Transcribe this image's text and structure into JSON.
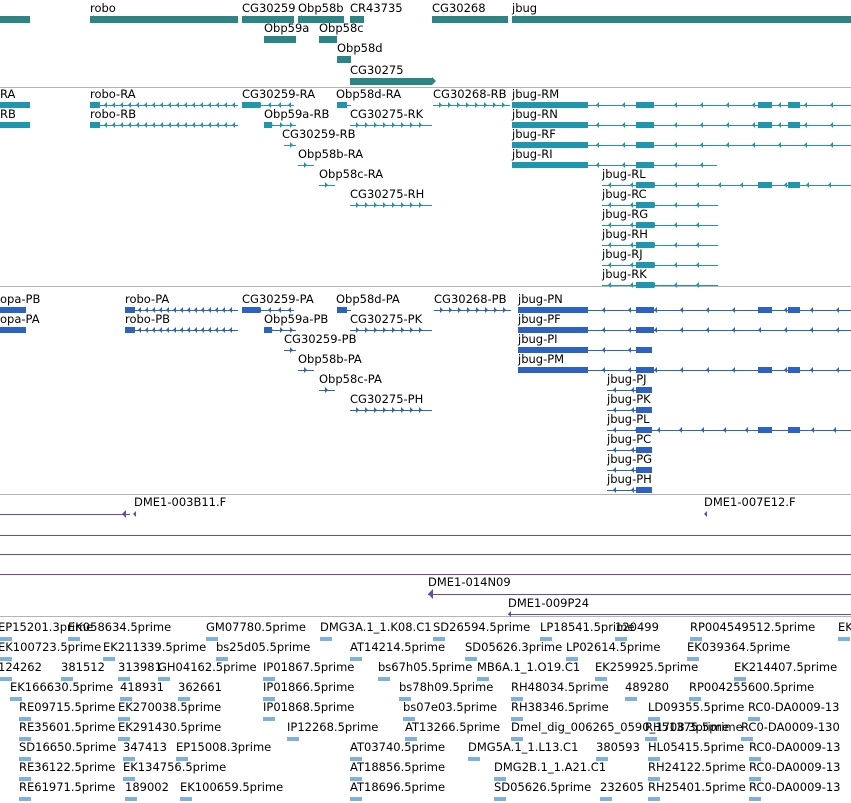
{
  "colors": {
    "gene": "#2b8585",
    "transcript": "#1e97ae",
    "protein": "#2b62c4",
    "clone": "#6a4aa8",
    "est": "#7db1de",
    "separator": "#b4b4b4"
  },
  "tracks": {
    "genes": [
      {
        "label": ""
      },
      {
        "label": "robo"
      },
      {
        "label": "CG30259"
      },
      {
        "label": "Obp58b"
      },
      {
        "label": "CR43735"
      },
      {
        "label": "CG30268"
      },
      {
        "label": "jbug"
      },
      {
        "label": "Obp59a"
      },
      {
        "label": "Obp58c"
      },
      {
        "label": "Obp58d"
      },
      {
        "label": "CG30275"
      }
    ],
    "transcripts": [
      {
        "label": "RA"
      },
      {
        "label": "RB"
      },
      {
        "label": "robo-RA"
      },
      {
        "label": "robo-RB"
      },
      {
        "label": "CG30259-RA"
      },
      {
        "label": "Obp58d-RA"
      },
      {
        "label": "CG30268-RB"
      },
      {
        "label": "Obp59a-RB"
      },
      {
        "label": "CG30275-RK"
      },
      {
        "label": "CG30259-RB"
      },
      {
        "label": "Obp58b-RA"
      },
      {
        "label": "Obp58c-RA"
      },
      {
        "label": "CG30275-RH"
      },
      {
        "label": "jbug-RM"
      },
      {
        "label": "jbug-RN"
      },
      {
        "label": "jbug-RF"
      },
      {
        "label": "jbug-RI"
      },
      {
        "label": "jbug-RL"
      },
      {
        "label": "jbug-RC"
      },
      {
        "label": "jbug-RG"
      },
      {
        "label": "jbug-RH"
      },
      {
        "label": "jbug-RJ"
      },
      {
        "label": "jbug-RK"
      }
    ],
    "proteins": [
      {
        "label": "opa-PB"
      },
      {
        "label": "opa-PA"
      },
      {
        "label": "robo-PA"
      },
      {
        "label": "robo-PB"
      },
      {
        "label": "CG30259-PA"
      },
      {
        "label": "Obp59a-PB"
      },
      {
        "label": "CG30259-PB"
      },
      {
        "label": "Obp58b-PA"
      },
      {
        "label": "Obp58c-PA"
      },
      {
        "label": "Obp58d-PA"
      },
      {
        "label": "CG30275-PK"
      },
      {
        "label": "CG30275-PH"
      },
      {
        "label": "CG30268-PB"
      },
      {
        "label": "jbug-PN"
      },
      {
        "label": "jbug-PF"
      },
      {
        "label": "jbug-PI"
      },
      {
        "label": "jbug-PM"
      },
      {
        "label": "jbug-PJ"
      },
      {
        "label": "jbug-PK"
      },
      {
        "label": "jbug-PL"
      },
      {
        "label": "jbug-PC"
      },
      {
        "label": "jbug-PG"
      },
      {
        "label": "jbug-PH"
      }
    ],
    "clones": [
      {
        "label": "DME1-003B11.F"
      },
      {
        "label": "DME1-007E12.F"
      },
      {
        "label": "DME1-014N09"
      },
      {
        "label": "DME1-009P24"
      }
    ],
    "ests": [
      {
        "label": "EP15201.3prime"
      },
      {
        "label": "EK058634.5prime"
      },
      {
        "label": "GM07780.5prime"
      },
      {
        "label": "DMG3A.1_1.K08.C1"
      },
      {
        "label": "SD26594.5prime"
      },
      {
        "label": "LP18541.5prime"
      },
      {
        "label": "120499"
      },
      {
        "label": "RP004549512.5prime"
      },
      {
        "label": "EK"
      },
      {
        "label": "EK100723.5prime"
      },
      {
        "label": "EK211339.5prime"
      },
      {
        "label": "bs25d05.5prime"
      },
      {
        "label": "AT14214.5prime"
      },
      {
        "label": "SD05626.3prime"
      },
      {
        "label": "LP02614.5prime"
      },
      {
        "label": "EK039364.5prime"
      },
      {
        "label": "124262"
      },
      {
        "label": "381512"
      },
      {
        "label": "313981"
      },
      {
        "label": "GH04162.5prime"
      },
      {
        "label": "IP01867.5prime"
      },
      {
        "label": "bs67h05.5prime"
      },
      {
        "label": "MB6A.1_1.O19.C1"
      },
      {
        "label": "EK259925.5prime"
      },
      {
        "label": "EK214407.5prime"
      },
      {
        "label": "EK166630.5prime"
      },
      {
        "label": "418931"
      },
      {
        "label": "362661"
      },
      {
        "label": "IP01866.5prime"
      },
      {
        "label": "bs78h09.5prime"
      },
      {
        "label": "RH48034.5prime"
      },
      {
        "label": "489280"
      },
      {
        "label": "RP004255600.5prime"
      },
      {
        "label": "RE09715.5prime"
      },
      {
        "label": "EK270038.5prime"
      },
      {
        "label": "IP01868.5prime"
      },
      {
        "label": "bs07e03.5prime"
      },
      {
        "label": "RH38346.5prime"
      },
      {
        "label": "LD09355.5prime"
      },
      {
        "label": "RC0-DA0009-13"
      },
      {
        "label": "RE35601.5prime"
      },
      {
        "label": "EK291430.5prime"
      },
      {
        "label": "IP12268.5prime"
      },
      {
        "label": "AT13266.5prime"
      },
      {
        "label": "Dmel_dig_006265_0590_1708.3prime"
      },
      {
        "label": "RH51375.5prime"
      },
      {
        "label": "RC0-DA0009-130"
      },
      {
        "label": "SD16650.5prime"
      },
      {
        "label": "347413"
      },
      {
        "label": "EP15008.3prime"
      },
      {
        "label": "AT03740.5prime"
      },
      {
        "label": "DMG5A.1_1.L13.C1"
      },
      {
        "label": "380593"
      },
      {
        "label": "HL05415.5prime"
      },
      {
        "label": "RC0-DA0009-13"
      },
      {
        "label": "RE36122.5prime"
      },
      {
        "label": "EK134756.5prime"
      },
      {
        "label": "AT18856.5prime"
      },
      {
        "label": "DMG2B.1_1.A21.C1"
      },
      {
        "label": "RH24122.5prime"
      },
      {
        "label": "RC0-DA0009-13"
      },
      {
        "label": "RE61971.5prime"
      },
      {
        "label": "189002"
      },
      {
        "label": "EK100659.5prime"
      },
      {
        "label": "AT18696.5prime"
      },
      {
        "label": "SD05626.5prime"
      },
      {
        "label": "232605"
      },
      {
        "label": "RH25401.5prime"
      },
      {
        "label": "RC0-DA0009-13"
      }
    ]
  }
}
